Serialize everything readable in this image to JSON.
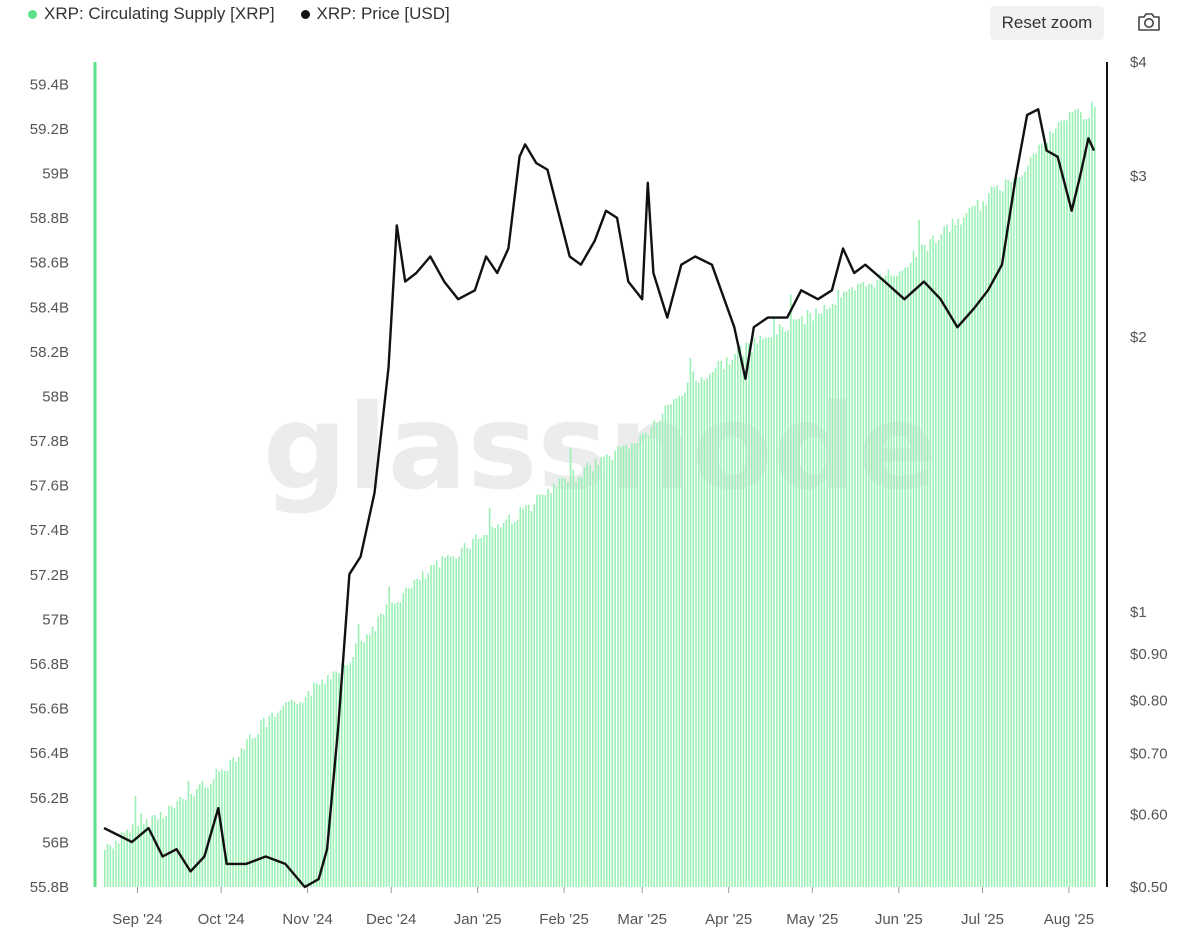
{
  "legend": {
    "supply_label": "XRP: Circulating Supply [XRP]",
    "price_label": "XRP: Price [USD]"
  },
  "toolbar": {
    "reset_zoom_label": "Reset zoom",
    "camera_icon": "camera-icon"
  },
  "watermark": "glassnode",
  "colors": {
    "supply": "#5ee08a",
    "supply_fill": "#9af0b4",
    "price": "#111111",
    "left_axis": "#5ee08a"
  },
  "chart_data": {
    "type": "bar+line",
    "x_axis": {
      "type": "date",
      "range": [
        "2024-08-20",
        "2025-08-10"
      ],
      "ticks": [
        {
          "date": "2024-09-01",
          "label": "Sep '24"
        },
        {
          "date": "2024-10-01",
          "label": "Oct '24"
        },
        {
          "date": "2024-11-01",
          "label": "Nov '24"
        },
        {
          "date": "2024-12-01",
          "label": "Dec '24"
        },
        {
          "date": "2025-01-01",
          "label": "Jan '25"
        },
        {
          "date": "2025-02-01",
          "label": "Feb '25"
        },
        {
          "date": "2025-03-01",
          "label": "Mar '25"
        },
        {
          "date": "2025-04-01",
          "label": "Apr '25"
        },
        {
          "date": "2025-05-01",
          "label": "May '25"
        },
        {
          "date": "2025-06-01",
          "label": "Jun '25"
        },
        {
          "date": "2025-07-01",
          "label": "Jul '25"
        },
        {
          "date": "2025-08-01",
          "label": "Aug '25"
        }
      ]
    },
    "y_left": {
      "scale": "linear",
      "range": [
        55.8,
        59.5
      ],
      "unit": "B",
      "ticks": [
        "55.8B",
        "56B",
        "56.2B",
        "56.4B",
        "56.6B",
        "56.8B",
        "57B",
        "57.2B",
        "57.4B",
        "57.6B",
        "57.8B",
        "58B",
        "58.2B",
        "58.4B",
        "58.6B",
        "58.8B",
        "59B",
        "59.2B",
        "59.4B"
      ],
      "tick_values": [
        55.8,
        56.0,
        56.2,
        56.4,
        56.6,
        56.8,
        57.0,
        57.2,
        57.4,
        57.6,
        57.8,
        58.0,
        58.2,
        58.4,
        58.6,
        58.8,
        59.0,
        59.2,
        59.4
      ]
    },
    "y_right": {
      "scale": "log",
      "range": [
        0.5,
        4
      ],
      "ticks": [
        {
          "value": 4,
          "label": "$4"
        },
        {
          "value": 3,
          "label": "$3"
        },
        {
          "value": 2,
          "label": "$2"
        },
        {
          "value": 1,
          "label": "$1"
        },
        {
          "value": 0.9,
          "label": "$0.90"
        },
        {
          "value": 0.8,
          "label": "$0.80"
        },
        {
          "value": 0.7,
          "label": "$0.70"
        },
        {
          "value": 0.6,
          "label": "$0.60"
        },
        {
          "value": 0.5,
          "label": "$0.50"
        }
      ]
    },
    "series": [
      {
        "name": "XRP: Circulating Supply [XRP]",
        "type": "bar",
        "unit": "billion XRP",
        "points": [
          [
            "2024-08-20",
            56.0
          ],
          [
            "2024-09-01",
            56.1
          ],
          [
            "2024-09-15",
            56.2
          ],
          [
            "2024-10-01",
            56.35
          ],
          [
            "2024-10-15",
            56.55
          ],
          [
            "2024-11-01",
            56.7
          ],
          [
            "2024-11-15",
            56.85
          ],
          [
            "2024-12-01",
            57.1
          ],
          [
            "2024-12-15",
            57.25
          ],
          [
            "2025-01-01",
            57.4
          ],
          [
            "2025-01-15",
            57.5
          ],
          [
            "2025-02-01",
            57.65
          ],
          [
            "2025-02-15",
            57.75
          ],
          [
            "2025-03-01",
            57.85
          ],
          [
            "2025-03-15",
            58.05
          ],
          [
            "2025-04-01",
            58.2
          ],
          [
            "2025-04-15",
            58.3
          ],
          [
            "2025-05-01",
            58.4
          ],
          [
            "2025-05-15",
            58.5
          ],
          [
            "2025-06-01",
            58.6
          ],
          [
            "2025-06-15",
            58.75
          ],
          [
            "2025-07-01",
            58.9
          ],
          [
            "2025-07-15",
            59.05
          ],
          [
            "2025-08-01",
            59.3
          ],
          [
            "2025-08-10",
            59.3
          ]
        ]
      },
      {
        "name": "XRP: Price [USD]",
        "type": "line",
        "unit": "USD",
        "points": [
          [
            "2024-08-20",
            0.58
          ],
          [
            "2024-08-25",
            0.57
          ],
          [
            "2024-08-30",
            0.56
          ],
          [
            "2024-09-05",
            0.58
          ],
          [
            "2024-09-10",
            0.54
          ],
          [
            "2024-09-15",
            0.55
          ],
          [
            "2024-09-20",
            0.52
          ],
          [
            "2024-09-25",
            0.54
          ],
          [
            "2024-09-30",
            0.61
          ],
          [
            "2024-10-03",
            0.53
          ],
          [
            "2024-10-10",
            0.53
          ],
          [
            "2024-10-17",
            0.54
          ],
          [
            "2024-10-24",
            0.53
          ],
          [
            "2024-10-31",
            0.5
          ],
          [
            "2024-11-05",
            0.51
          ],
          [
            "2024-11-08",
            0.55
          ],
          [
            "2024-11-12",
            0.75
          ],
          [
            "2024-11-16",
            1.1
          ],
          [
            "2024-11-20",
            1.15
          ],
          [
            "2024-11-25",
            1.35
          ],
          [
            "2024-11-30",
            1.85
          ],
          [
            "2024-12-03",
            2.65
          ],
          [
            "2024-12-06",
            2.3
          ],
          [
            "2024-12-10",
            2.35
          ],
          [
            "2024-12-15",
            2.45
          ],
          [
            "2024-12-20",
            2.3
          ],
          [
            "2024-12-25",
            2.2
          ],
          [
            "2024-12-31",
            2.25
          ],
          [
            "2025-01-04",
            2.45
          ],
          [
            "2025-01-08",
            2.35
          ],
          [
            "2025-01-12",
            2.5
          ],
          [
            "2025-01-16",
            3.15
          ],
          [
            "2025-01-18",
            3.25
          ],
          [
            "2025-01-22",
            3.1
          ],
          [
            "2025-01-26",
            3.05
          ],
          [
            "2025-02-03",
            2.45
          ],
          [
            "2025-02-07",
            2.4
          ],
          [
            "2025-02-12",
            2.55
          ],
          [
            "2025-02-16",
            2.75
          ],
          [
            "2025-02-20",
            2.7
          ],
          [
            "2025-02-24",
            2.3
          ],
          [
            "2025-03-01",
            2.2
          ],
          [
            "2025-03-03",
            2.95
          ],
          [
            "2025-03-05",
            2.35
          ],
          [
            "2025-03-10",
            2.1
          ],
          [
            "2025-03-15",
            2.4
          ],
          [
            "2025-03-20",
            2.45
          ],
          [
            "2025-03-26",
            2.4
          ],
          [
            "2025-04-03",
            2.05
          ],
          [
            "2025-04-07",
            1.8
          ],
          [
            "2025-04-10",
            2.05
          ],
          [
            "2025-04-15",
            2.1
          ],
          [
            "2025-04-22",
            2.1
          ],
          [
            "2025-04-27",
            2.25
          ],
          [
            "2025-05-03",
            2.2
          ],
          [
            "2025-05-08",
            2.25
          ],
          [
            "2025-05-12",
            2.5
          ],
          [
            "2025-05-16",
            2.35
          ],
          [
            "2025-05-20",
            2.4
          ],
          [
            "2025-05-27",
            2.3
          ],
          [
            "2025-06-03",
            2.2
          ],
          [
            "2025-06-10",
            2.3
          ],
          [
            "2025-06-16",
            2.2
          ],
          [
            "2025-06-22",
            2.05
          ],
          [
            "2025-06-28",
            2.15
          ],
          [
            "2025-07-03",
            2.25
          ],
          [
            "2025-07-08",
            2.4
          ],
          [
            "2025-07-13",
            3.0
          ],
          [
            "2025-07-17",
            3.5
          ],
          [
            "2025-07-21",
            3.55
          ],
          [
            "2025-07-24",
            3.2
          ],
          [
            "2025-07-28",
            3.15
          ],
          [
            "2025-08-02",
            2.75
          ],
          [
            "2025-08-05",
            3.0
          ],
          [
            "2025-08-08",
            3.3
          ],
          [
            "2025-08-10",
            3.2
          ]
        ]
      }
    ]
  }
}
